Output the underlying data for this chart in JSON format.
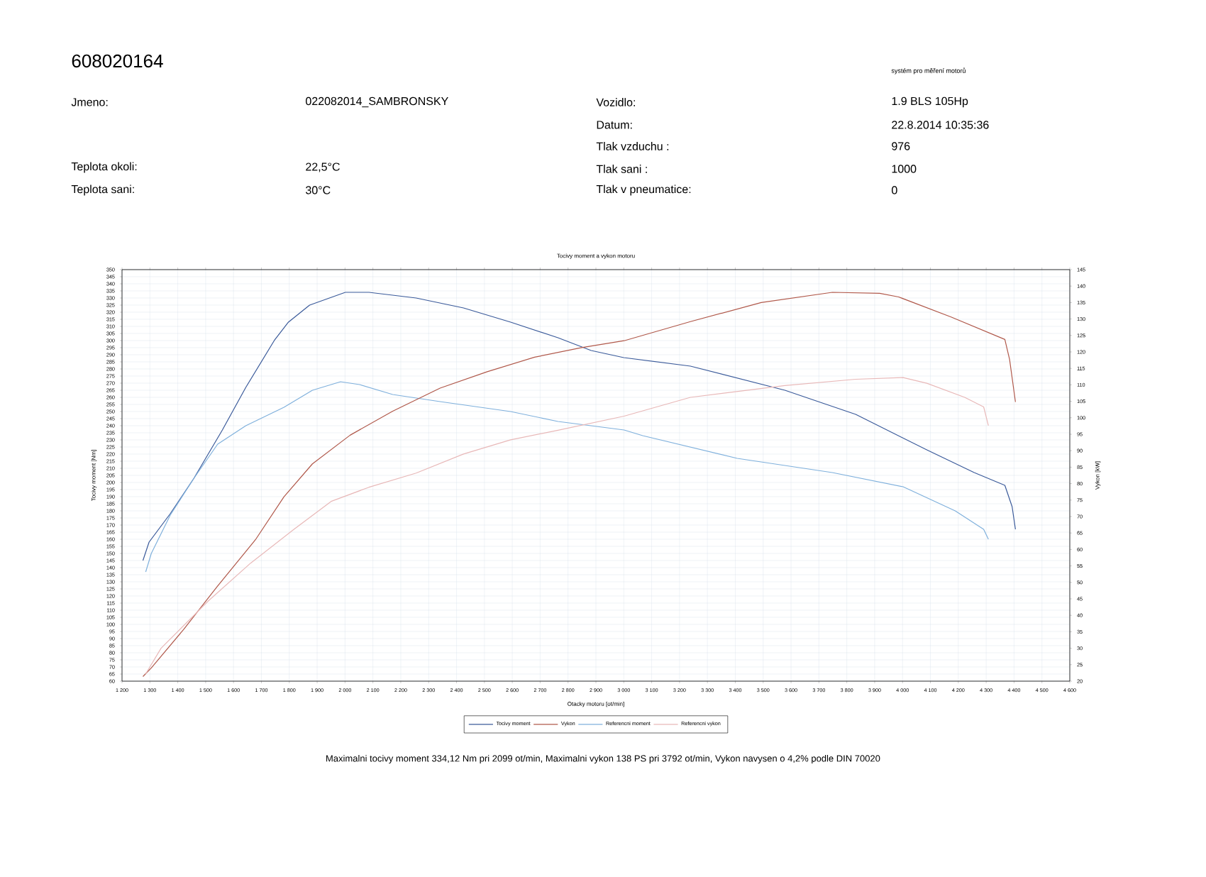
{
  "chart_data": {
    "type": "line",
    "title": "Tocivy moment a vykon motoru",
    "xlabel": "Otacky motoru [ot/min]",
    "ylabel": "Tocivy moment [Nm]",
    "y2label": "Vykon [kW]",
    "xlim": [
      1200,
      4600
    ],
    "ylim": [
      60,
      350
    ],
    "y2lim": [
      20,
      145
    ],
    "xticks": [
      {
        "value": 1200,
        "label": "1 200"
      },
      {
        "value": 1300,
        "label": "1 300"
      },
      {
        "value": 1400,
        "label": "1 400"
      },
      {
        "value": 1500,
        "label": "1 500"
      },
      {
        "value": 1600,
        "label": "1 600"
      },
      {
        "value": 1700,
        "label": "1 700"
      },
      {
        "value": 1800,
        "label": "1 800"
      },
      {
        "value": 1900,
        "label": "1 900"
      },
      {
        "value": 2000,
        "label": "2 000"
      },
      {
        "value": 2100,
        "label": "2 100"
      },
      {
        "value": 2200,
        "label": "2 200"
      },
      {
        "value": 2300,
        "label": "2 300"
      },
      {
        "value": 2400,
        "label": "2 400"
      },
      {
        "value": 2500,
        "label": "2 500"
      },
      {
        "value": 2600,
        "label": "2 600"
      },
      {
        "value": 2700,
        "label": "2 700"
      },
      {
        "value": 2800,
        "label": "2 800"
      },
      {
        "value": 2900,
        "label": "2 900"
      },
      {
        "value": 3000,
        "label": "3 000"
      },
      {
        "value": 3100,
        "label": "3 100"
      },
      {
        "value": 3200,
        "label": "3 200"
      },
      {
        "value": 3300,
        "label": "3 300"
      },
      {
        "value": 3400,
        "label": "3 400"
      },
      {
        "value": 3500,
        "label": "3 500"
      },
      {
        "value": 3600,
        "label": "3 600"
      },
      {
        "value": 3700,
        "label": "3 700"
      },
      {
        "value": 3800,
        "label": "3 800"
      },
      {
        "value": 3900,
        "label": "3 900"
      },
      {
        "value": 4000,
        "label": "4 000"
      },
      {
        "value": 4100,
        "label": "4 100"
      },
      {
        "value": 4200,
        "label": "4 200"
      },
      {
        "value": 4300,
        "label": "4 300"
      },
      {
        "value": 4400,
        "label": "4 400"
      },
      {
        "value": 4500,
        "label": "4 500"
      },
      {
        "value": 4600,
        "label": "4 600"
      }
    ],
    "yticks": [
      60,
      65,
      70,
      75,
      80,
      85,
      90,
      95,
      100,
      105,
      110,
      115,
      120,
      125,
      130,
      135,
      140,
      145,
      150,
      155,
      160,
      165,
      170,
      175,
      180,
      185,
      190,
      195,
      200,
      205,
      210,
      215,
      220,
      225,
      230,
      235,
      240,
      245,
      250,
      255,
      260,
      265,
      270,
      275,
      280,
      285,
      290,
      295,
      300,
      305,
      310,
      315,
      320,
      325,
      330,
      335,
      340,
      345,
      350
    ],
    "y2ticks": [
      20,
      25,
      30,
      35,
      40,
      45,
      50,
      55,
      60,
      65,
      70,
      75,
      80,
      85,
      90,
      95,
      100,
      105,
      110,
      115,
      120,
      125,
      130,
      135,
      140,
      145
    ],
    "grid": true,
    "legend": "bottom",
    "series": [
      {
        "name": "Tocivy moment",
        "color": "#3a5a9a",
        "x": [
          1275,
          1297,
          1373,
          1458,
          1560,
          1644,
          1746,
          1797,
          1873,
          2001,
          2086,
          2255,
          2425,
          2594,
          2764,
          2883,
          3000,
          3239,
          3578,
          3832,
          4087,
          4257,
          4367,
          4393,
          4405
        ],
        "values": [
          145,
          158,
          178,
          203,
          237,
          267,
          300,
          313,
          325,
          334,
          334,
          330,
          323,
          313,
          302,
          293,
          288,
          282,
          265,
          248,
          223,
          207,
          198,
          183,
          167
        ]
      },
      {
        "name": "Vykon",
        "color": "#b0584a",
        "axis": "y2",
        "x": [
          1275,
          1305,
          1422,
          1541,
          1679,
          1781,
          1883,
          2018,
          2171,
          2341,
          2510,
          2680,
          2849,
          3001,
          3239,
          3493,
          3748,
          3918,
          3986,
          4174,
          4367,
          4384,
          4405
        ],
        "values": [
          21.4,
          24,
          35.8,
          48.7,
          63,
          76,
          86,
          94.7,
          102,
          109,
          114,
          118.4,
          121.3,
          123.4,
          129.2,
          135,
          138.1,
          137.8,
          136.7,
          130.6,
          123.8,
          117.7,
          104.8
        ]
      },
      {
        "name": "Referencni moment",
        "color": "#7fb0dc",
        "x": [
          1285,
          1305,
          1373,
          1458,
          1543,
          1644,
          1781,
          1883,
          1984,
          2052,
          2171,
          2341,
          2594,
          2764,
          3001,
          3068,
          3407,
          3748,
          4002,
          4189,
          4291,
          4308
        ],
        "values": [
          137,
          150,
          177,
          203,
          227,
          240,
          253,
          265,
          271,
          269,
          262,
          257,
          250,
          243,
          237,
          233,
          217,
          207,
          197,
          180,
          167,
          160
        ]
      },
      {
        "name": "Referencni vykon",
        "color": "#e8b8b8",
        "axis": "y2",
        "x": [
          1285,
          1340,
          1510,
          1662,
          1815,
          1950,
          2086,
          2255,
          2425,
          2594,
          2764,
          3001,
          3239,
          3578,
          3832,
          4002,
          4087,
          4223,
          4291,
          4308
        ],
        "values": [
          22.2,
          30,
          44.4,
          55.9,
          66,
          74.6,
          78.9,
          83.2,
          89,
          93.3,
          96.2,
          100.5,
          106.2,
          109.8,
          111.7,
          112.2,
          110.5,
          106.2,
          103.3,
          97.6
        ]
      }
    ],
    "annotations": [
      "608020164",
      "systém pro měření motorů",
      "Jmeno:",
      "022082014_SAMBRONSKY",
      "Teplota okoli:",
      "22,5°C",
      "Teplota sani:",
      "30°C",
      "Vozidlo:",
      "1.9 BLS 105Hp",
      "Datum:",
      "22.8.2014 10:35:36",
      "Tlak vzduchu :",
      "976",
      "Tlak sani :",
      "1000",
      "Tlak v pneumatice:",
      "0",
      "Maximalni tocivy moment 334,12 Nm pri 2099 ot/min,  Maximalni vykon 138 PS pri 3792 ot/min,  Vykon navysen o 4,2% podle DIN 70020"
    ]
  }
}
